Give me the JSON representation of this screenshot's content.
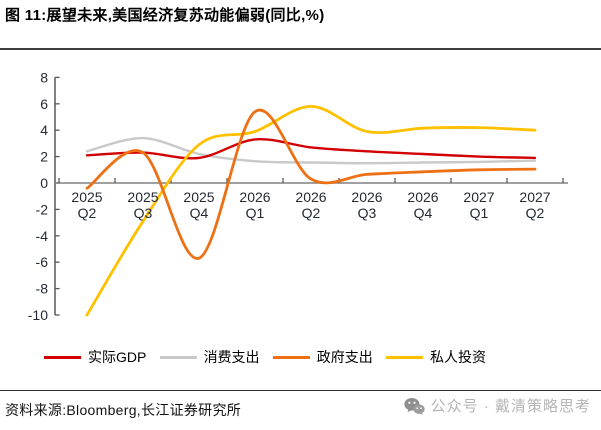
{
  "figure": {
    "title": "图 11:展望未来,美国经济复苏动能偏弱(同比,%)"
  },
  "chart_data": {
    "type": "line",
    "title": "展望未来,美国经济复苏动能偏弱(同比,%)",
    "xlabel": "",
    "ylabel": "",
    "categories": [
      "2025 Q2",
      "2025 Q3",
      "2025 Q4",
      "2026 Q1",
      "2026 Q2",
      "2026 Q3",
      "2026 Q4",
      "2027 Q1",
      "2027 Q2"
    ],
    "series": [
      {
        "name": "实际GDP",
        "color": "#d20000",
        "width": 2.4,
        "values": [
          2.1,
          2.3,
          1.9,
          3.3,
          2.7,
          2.4,
          2.2,
          2.0,
          1.9
        ]
      },
      {
        "name": "消费支出",
        "color": "#c9c9c9",
        "width": 2.4,
        "values": [
          2.4,
          3.4,
          2.2,
          1.65,
          1.55,
          1.5,
          1.55,
          1.6,
          1.7
        ]
      },
      {
        "name": "政府支出",
        "color": "#ed7014",
        "width": 2.8,
        "values": [
          -0.4,
          2.3,
          -5.7,
          5.4,
          0.3,
          0.65,
          0.85,
          1.0,
          1.05
        ]
      },
      {
        "name": "私人投资",
        "color": "#ffc000",
        "width": 2.8,
        "values": [
          -10,
          -2.9,
          2.9,
          3.9,
          5.8,
          3.9,
          4.15,
          4.2,
          4.0
        ]
      }
    ],
    "draw_order": [
      1,
      0,
      3,
      2
    ],
    "ylim": [
      -10,
      8
    ],
    "ytick_step": 2,
    "smooth": true,
    "grid": "zero-line-only",
    "legend_position": "bottom"
  },
  "chart_style": {
    "axis_color": "#595959",
    "zero_line_color": "#808080",
    "tick_label_color": "#262a33"
  },
  "footer": {
    "source": "资料来源:Bloomberg,长江证券研究所",
    "watermark_text": "公众号 · 戴清策略思考"
  }
}
